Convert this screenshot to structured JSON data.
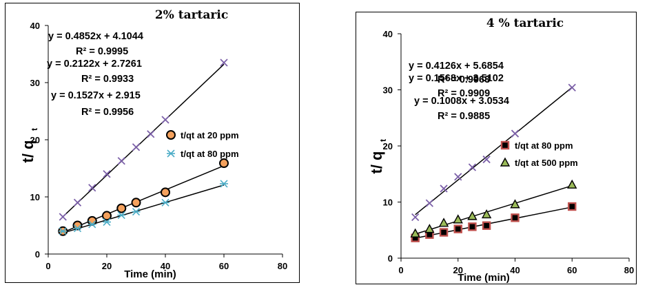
{
  "chart_data": [
    {
      "type": "scatter",
      "title": "2% tartaric",
      "xlabel": "Time (min)",
      "ylabel": "t/ q",
      "ylabel_subscript": "t",
      "xlim": [
        0,
        80
      ],
      "ylim": [
        0,
        40
      ],
      "xticks": [
        "0",
        "20",
        "40",
        "60",
        "80"
      ],
      "yticks": [
        "0",
        "10",
        "20",
        "30",
        "40"
      ],
      "grid": false,
      "legend_position": "right-middle",
      "series": [
        {
          "marker": "x",
          "color": "#7b5fa8",
          "x": [
            5,
            10,
            15,
            20,
            25,
            30,
            35,
            40,
            60
          ],
          "y": [
            6.5,
            9.0,
            11.6,
            14.0,
            16.3,
            18.7,
            21.0,
            23.5,
            33.5
          ],
          "fit": {
            "slope": 0.4852,
            "intercept": 4.1044
          }
        },
        {
          "name": "t/qt at 20 ppm",
          "marker": "circle",
          "color": "#f4a15d",
          "x": [
            5,
            10,
            15,
            20,
            25,
            30,
            40,
            60
          ],
          "y": [
            4.0,
            5.0,
            5.8,
            6.7,
            8.0,
            9.0,
            10.8,
            15.9
          ],
          "fit": {
            "slope": 0.2122,
            "intercept": 2.7261
          }
        },
        {
          "name": "t/qt at 80 ppm",
          "marker": "asterisk",
          "color": "#4bacc6",
          "x": [
            5,
            10,
            15,
            20,
            25,
            30,
            40,
            60
          ],
          "y": [
            4.0,
            4.5,
            5.2,
            5.6,
            6.8,
            7.4,
            9.0,
            12.3
          ],
          "fit": {
            "slope": 0.1527,
            "intercept": 2.915
          }
        }
      ],
      "equations": [
        {
          "eq": "y = 0.4852x + 4.1044",
          "r2": "R² = 0.9995"
        },
        {
          "eq": "y = 0.2122x + 2.7261",
          "r2": "R² = 0.9933"
        },
        {
          "eq": "y = 0.1527x + 2.915",
          "r2": "R² = 0.9956"
        }
      ]
    },
    {
      "type": "scatter",
      "title": "4 % tartaric",
      "xlabel": "Time (min)",
      "ylabel": "t/ q",
      "ylabel_subscript": "t",
      "xlim": [
        0,
        80
      ],
      "ylim": [
        0,
        40
      ],
      "xticks": [
        "0",
        "20",
        "40",
        "60",
        "80"
      ],
      "yticks": [
        "0",
        "10",
        "20",
        "30",
        "40"
      ],
      "grid": false,
      "legend_position": "right-middle",
      "series": [
        {
          "marker": "x",
          "color": "#7b5fa8",
          "x": [
            5,
            10,
            15,
            20,
            25,
            30,
            40,
            60
          ],
          "y": [
            7.3,
            9.8,
            12.4,
            14.5,
            16.2,
            17.6,
            22.2,
            30.4
          ],
          "fit": {
            "slope": 0.4126,
            "intercept": 5.6854
          }
        },
        {
          "name": "t/qt at 80 ppm",
          "marker": "square",
          "color": "#c0504d",
          "x": [
            5,
            10,
            15,
            20,
            25,
            30,
            40,
            60
          ],
          "y": [
            3.6,
            4.2,
            4.6,
            5.2,
            5.6,
            5.8,
            7.2,
            9.2
          ],
          "fit": {
            "slope": 0.1008,
            "intercept": 3.0534
          }
        },
        {
          "name": "t/qt at 500 ppm",
          "marker": "triangle",
          "color": "#9bbb59",
          "x": [
            5,
            10,
            15,
            20,
            25,
            30,
            40,
            60
          ],
          "y": [
            4.4,
            5.2,
            6.3,
            6.9,
            7.5,
            7.8,
            9.6,
            13.1
          ],
          "fit": {
            "slope": 0.1568,
            "intercept": 3.5102
          }
        }
      ],
      "equations": [
        {
          "eq": "y = 0.4126x + 5.6854",
          "r2": "R² = 0.9963"
        },
        {
          "eq": "y = 0.1568x + 3.5102",
          "r2": "R² = 0.9909"
        },
        {
          "eq": "y = 0.1008x + 3.0534",
          "r2": "R² = 0.9885"
        }
      ]
    }
  ]
}
